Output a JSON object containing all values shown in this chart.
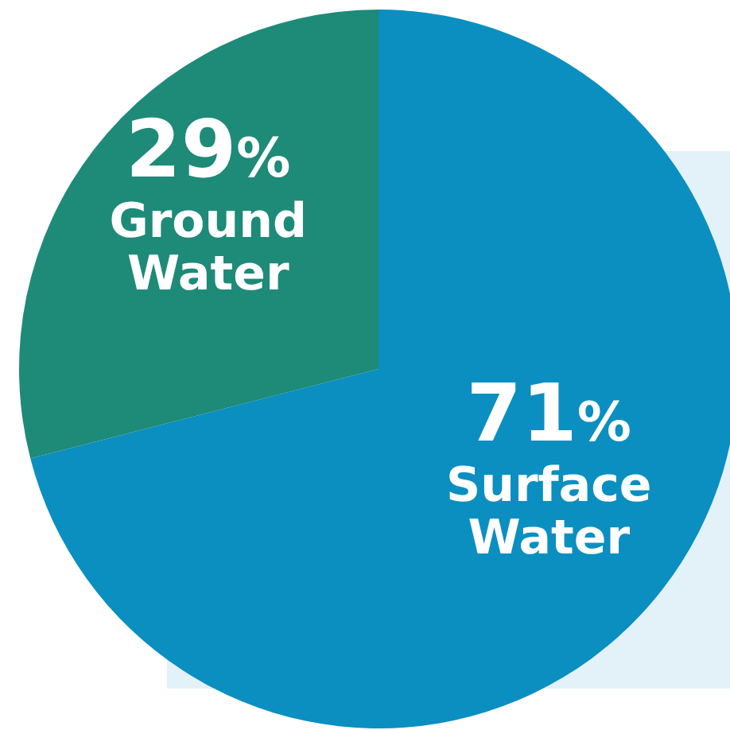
{
  "chart_data": {
    "type": "pie",
    "categories": [
      "Surface Water",
      "Ground Water"
    ],
    "values": [
      71,
      29
    ],
    "colors": [
      "#0a8fc0",
      "#1e8a78"
    ],
    "value_labels": [
      "71%",
      "29%"
    ]
  }
}
